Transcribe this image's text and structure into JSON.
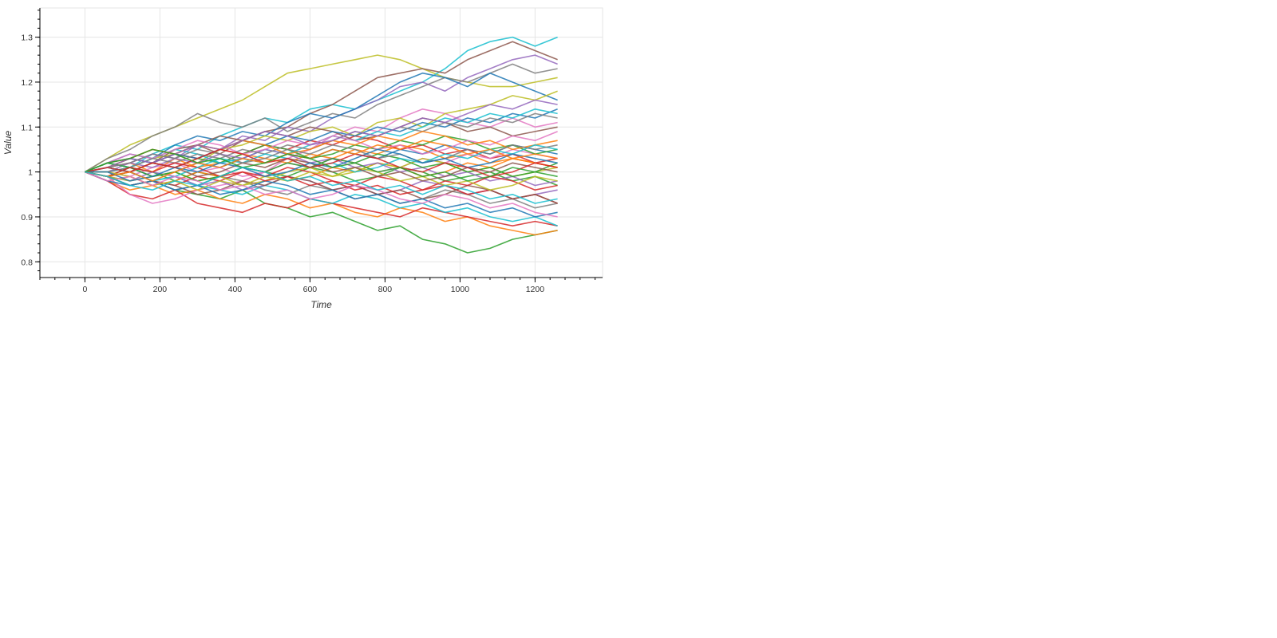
{
  "chart_data": {
    "type": "line",
    "title": "",
    "xlabel": "Time",
    "ylabel": "Value",
    "xlim": [
      -120,
      1380
    ],
    "ylim": [
      0.765,
      1.365
    ],
    "x_ticks": [
      0,
      200,
      400,
      600,
      800,
      1000,
      1200
    ],
    "x_tick_labels": [
      "0",
      "200",
      "400",
      "600",
      "800",
      "1000",
      "1200"
    ],
    "y_ticks": [
      0.8,
      0.9,
      1.0,
      1.1,
      1.2,
      1.3
    ],
    "y_tick_labels": [
      "0.8",
      "0.9",
      "1",
      "1.1",
      "1.2",
      "1.3"
    ],
    "grid": true,
    "legend": "none",
    "x_step": 60,
    "x_start": 0,
    "palette": [
      "#1f77b4",
      "#ff7f0e",
      "#2ca02c",
      "#d62728",
      "#9467bd",
      "#8c564b",
      "#e377c2",
      "#7f7f7f",
      "#bcbd22",
      "#17becf"
    ],
    "series": [
      {
        "color": "#bcbd22",
        "values": [
          1.0,
          1.03,
          1.06,
          1.08,
          1.1,
          1.12,
          1.14,
          1.16,
          1.19,
          1.22,
          1.23,
          1.24,
          1.25,
          1.26,
          1.25,
          1.23,
          1.21,
          1.2,
          1.19,
          1.19,
          1.2,
          1.21
        ]
      },
      {
        "color": "#17becf",
        "values": [
          1.0,
          1.02,
          1.01,
          1.04,
          1.06,
          1.05,
          1.08,
          1.1,
          1.12,
          1.11,
          1.14,
          1.15,
          1.14,
          1.16,
          1.18,
          1.2,
          1.23,
          1.27,
          1.29,
          1.3,
          1.28,
          1.3
        ]
      },
      {
        "color": "#8c564b",
        "values": [
          1.0,
          1.01,
          1.03,
          1.02,
          1.05,
          1.06,
          1.04,
          1.07,
          1.09,
          1.1,
          1.13,
          1.15,
          1.18,
          1.21,
          1.22,
          1.23,
          1.22,
          1.25,
          1.27,
          1.29,
          1.27,
          1.25
        ]
      },
      {
        "color": "#9467bd",
        "values": [
          1.0,
          1.0,
          1.02,
          1.04,
          1.03,
          1.06,
          1.05,
          1.08,
          1.07,
          1.1,
          1.09,
          1.12,
          1.14,
          1.16,
          1.19,
          1.2,
          1.18,
          1.21,
          1.23,
          1.25,
          1.26,
          1.24
        ]
      },
      {
        "color": "#7f7f7f",
        "values": [
          1.0,
          1.03,
          1.05,
          1.08,
          1.1,
          1.13,
          1.11,
          1.1,
          1.12,
          1.09,
          1.11,
          1.13,
          1.12,
          1.15,
          1.17,
          1.19,
          1.21,
          1.2,
          1.22,
          1.24,
          1.22,
          1.23
        ]
      },
      {
        "color": "#1f77b4",
        "values": [
          1.0,
          1.02,
          1.04,
          1.03,
          1.06,
          1.08,
          1.07,
          1.09,
          1.08,
          1.11,
          1.13,
          1.12,
          1.14,
          1.17,
          1.2,
          1.22,
          1.21,
          1.19,
          1.22,
          1.2,
          1.18,
          1.16
        ]
      },
      {
        "color": "#2ca02c",
        "values": [
          1.0,
          0.99,
          0.97,
          0.98,
          0.96,
          0.95,
          0.94,
          0.96,
          0.93,
          0.92,
          0.9,
          0.91,
          0.89,
          0.87,
          0.88,
          0.85,
          0.84,
          0.82,
          0.83,
          0.85,
          0.86,
          0.87
        ]
      },
      {
        "color": "#ff7f0e",
        "values": [
          1.0,
          0.98,
          0.96,
          0.97,
          0.95,
          0.96,
          0.94,
          0.93,
          0.95,
          0.94,
          0.92,
          0.93,
          0.91,
          0.9,
          0.92,
          0.91,
          0.89,
          0.9,
          0.88,
          0.87,
          0.86,
          0.87
        ]
      },
      {
        "color": "#d62728",
        "values": [
          1.0,
          0.98,
          0.95,
          0.94,
          0.96,
          0.93,
          0.92,
          0.91,
          0.93,
          0.92,
          0.94,
          0.93,
          0.92,
          0.91,
          0.9,
          0.92,
          0.91,
          0.9,
          0.89,
          0.88,
          0.89,
          0.88
        ]
      },
      {
        "color": "#e377c2",
        "values": [
          1.0,
          0.99,
          0.95,
          0.93,
          0.94,
          0.96,
          0.97,
          0.98,
          1.0,
          1.03,
          1.05,
          1.08,
          1.1,
          1.09,
          1.12,
          1.14,
          1.13,
          1.11,
          1.1,
          1.12,
          1.1,
          1.11
        ]
      },
      {
        "color": "#17becf",
        "values": [
          1.0,
          1.01,
          1.0,
          0.98,
          0.99,
          0.97,
          0.96,
          0.95,
          0.97,
          0.96,
          0.94,
          0.93,
          0.95,
          0.94,
          0.92,
          0.93,
          0.91,
          0.92,
          0.9,
          0.89,
          0.9,
          0.88
        ]
      },
      {
        "color": "#bcbd22",
        "values": [
          1.0,
          1.02,
          1.01,
          1.03,
          1.04,
          1.02,
          1.05,
          1.06,
          1.08,
          1.07,
          1.09,
          1.1,
          1.08,
          1.11,
          1.12,
          1.1,
          1.13,
          1.14,
          1.15,
          1.17,
          1.16,
          1.18
        ]
      },
      {
        "color": "#1f77b4",
        "values": [
          1.0,
          1.0,
          1.01,
          0.99,
          1.0,
          1.02,
          1.01,
          1.03,
          1.02,
          1.04,
          1.03,
          1.05,
          1.04,
          1.03,
          1.05,
          1.04,
          1.06,
          1.05,
          1.04,
          1.06,
          1.05,
          1.04
        ]
      },
      {
        "color": "#ff7f0e",
        "values": [
          1.0,
          1.01,
          1.02,
          1.0,
          1.03,
          1.01,
          1.02,
          1.04,
          1.03,
          1.02,
          1.04,
          1.03,
          1.05,
          1.04,
          1.06,
          1.05,
          1.03,
          1.04,
          1.02,
          1.03,
          1.02,
          1.01
        ]
      },
      {
        "color": "#2ca02c",
        "values": [
          1.0,
          0.99,
          1.01,
          1.0,
          0.98,
          1.0,
          0.99,
          1.01,
          1.0,
          0.99,
          1.01,
          1.0,
          0.98,
          0.99,
          1.01,
          1.0,
          0.98,
          0.99,
          1.0,
          0.98,
          0.99,
          0.97
        ]
      },
      {
        "color": "#d62728",
        "values": [
          1.0,
          1.01,
          1.0,
          1.02,
          1.04,
          1.03,
          1.05,
          1.04,
          1.06,
          1.05,
          1.07,
          1.06,
          1.08,
          1.07,
          1.05,
          1.06,
          1.04,
          1.05,
          1.03,
          1.04,
          1.02,
          1.03
        ]
      },
      {
        "color": "#9467bd",
        "values": [
          1.0,
          0.99,
          0.98,
          1.0,
          0.99,
          0.97,
          0.98,
          0.96,
          0.97,
          0.99,
          0.98,
          0.96,
          0.97,
          0.95,
          0.96,
          0.98,
          0.97,
          0.95,
          0.96,
          0.94,
          0.95,
          0.96
        ]
      },
      {
        "color": "#8c564b",
        "values": [
          1.0,
          1.02,
          1.03,
          1.05,
          1.04,
          1.06,
          1.08,
          1.07,
          1.09,
          1.08,
          1.1,
          1.09,
          1.07,
          1.08,
          1.1,
          1.12,
          1.11,
          1.09,
          1.1,
          1.08,
          1.09,
          1.1
        ]
      },
      {
        "color": "#e377c2",
        "values": [
          1.0,
          1.0,
          0.99,
          1.01,
          1.02,
          1.0,
          1.01,
          0.99,
          1.0,
          1.02,
          1.01,
          1.03,
          1.02,
          1.0,
          1.01,
          1.03,
          1.02,
          1.04,
          1.03,
          1.05,
          1.04,
          1.03
        ]
      },
      {
        "color": "#7f7f7f",
        "values": [
          1.0,
          0.99,
          0.97,
          0.98,
          0.96,
          0.97,
          0.99,
          0.98,
          0.96,
          0.95,
          0.97,
          0.96,
          0.94,
          0.95,
          0.93,
          0.94,
          0.96,
          0.95,
          0.93,
          0.94,
          0.92,
          0.93
        ]
      },
      {
        "color": "#1f77b4",
        "values": [
          1.0,
          1.01,
          1.03,
          1.02,
          1.04,
          1.03,
          1.05,
          1.07,
          1.06,
          1.08,
          1.07,
          1.09,
          1.08,
          1.1,
          1.09,
          1.11,
          1.1,
          1.12,
          1.11,
          1.13,
          1.12,
          1.14
        ]
      },
      {
        "color": "#ff7f0e",
        "values": [
          1.0,
          0.98,
          0.99,
          0.97,
          0.98,
          1.0,
          0.99,
          1.01,
          1.0,
          0.98,
          0.99,
          1.01,
          1.0,
          1.02,
          1.01,
          0.99,
          1.0,
          1.02,
          1.01,
          1.03,
          1.02,
          1.01
        ]
      },
      {
        "color": "#2ca02c",
        "values": [
          1.0,
          1.01,
          1.0,
          1.02,
          1.01,
          1.03,
          1.02,
          1.04,
          1.06,
          1.05,
          1.03,
          1.04,
          1.06,
          1.05,
          1.07,
          1.06,
          1.08,
          1.07,
          1.05,
          1.06,
          1.04,
          1.05
        ]
      },
      {
        "color": "#d62728",
        "values": [
          1.0,
          0.99,
          1.0,
          0.98,
          0.97,
          0.99,
          0.98,
          1.0,
          0.99,
          1.01,
          1.0,
          0.98,
          0.97,
          0.99,
          0.98,
          0.96,
          0.97,
          0.95,
          0.96,
          0.94,
          0.95,
          0.93
        ]
      },
      {
        "color": "#17becf",
        "values": [
          1.0,
          1.02,
          1.01,
          1.03,
          1.05,
          1.04,
          1.02,
          1.03,
          1.05,
          1.04,
          1.06,
          1.08,
          1.07,
          1.09,
          1.08,
          1.1,
          1.12,
          1.11,
          1.13,
          1.12,
          1.14,
          1.13
        ]
      },
      {
        "color": "#bcbd22",
        "values": [
          1.0,
          0.99,
          0.98,
          0.99,
          1.0,
          0.98,
          0.99,
          0.97,
          0.98,
          1.0,
          1.01,
          0.99,
          1.0,
          1.02,
          1.01,
          1.03,
          1.02,
          1.0,
          1.01,
          0.99,
          1.0,
          1.01
        ]
      },
      {
        "color": "#9467bd",
        "values": [
          1.0,
          1.01,
          1.02,
          1.01,
          1.03,
          1.02,
          1.04,
          1.03,
          1.05,
          1.04,
          1.02,
          1.03,
          1.01,
          1.02,
          1.0,
          1.01,
          0.99,
          1.0,
          0.98,
          0.99,
          0.97,
          0.98
        ]
      },
      {
        "color": "#8c564b",
        "values": [
          1.0,
          0.99,
          0.97,
          0.98,
          0.97,
          0.95,
          0.96,
          0.98,
          0.97,
          0.99,
          0.98,
          0.96,
          0.97,
          0.95,
          0.96,
          0.94,
          0.95,
          0.97,
          0.96,
          0.94,
          0.95,
          0.93
        ]
      },
      {
        "color": "#e377c2",
        "values": [
          1.0,
          1.02,
          1.04,
          1.03,
          1.05,
          1.07,
          1.06,
          1.04,
          1.05,
          1.07,
          1.06,
          1.08,
          1.07,
          1.05,
          1.06,
          1.04,
          1.05,
          1.07,
          1.06,
          1.08,
          1.07,
          1.09
        ]
      },
      {
        "color": "#7f7f7f",
        "values": [
          1.0,
          1.0,
          1.01,
          1.03,
          1.02,
          1.04,
          1.03,
          1.05,
          1.04,
          1.06,
          1.05,
          1.07,
          1.09,
          1.08,
          1.1,
          1.09,
          1.11,
          1.1,
          1.12,
          1.11,
          1.13,
          1.12
        ]
      },
      {
        "color": "#1f77b4",
        "values": [
          1.0,
          0.98,
          0.97,
          0.98,
          0.96,
          0.97,
          0.95,
          0.96,
          0.98,
          0.97,
          0.95,
          0.96,
          0.94,
          0.95,
          0.93,
          0.94,
          0.92,
          0.93,
          0.91,
          0.92,
          0.9,
          0.91
        ]
      },
      {
        "color": "#ff7f0e",
        "values": [
          1.0,
          1.01,
          1.03,
          1.05,
          1.04,
          1.06,
          1.05,
          1.07,
          1.06,
          1.04,
          1.05,
          1.07,
          1.06,
          1.08,
          1.07,
          1.09,
          1.08,
          1.06,
          1.07,
          1.05,
          1.06,
          1.07
        ]
      },
      {
        "color": "#2ca02c",
        "values": [
          1.0,
          1.02,
          1.01,
          0.99,
          1.0,
          0.98,
          0.99,
          1.01,
          1.0,
          1.02,
          1.01,
          1.03,
          1.02,
          1.04,
          1.03,
          1.01,
          1.02,
          1.0,
          1.01,
          0.99,
          1.0,
          1.02
        ]
      },
      {
        "color": "#d62728",
        "values": [
          1.0,
          0.99,
          1.01,
          1.0,
          1.02,
          1.01,
          0.99,
          1.0,
          0.98,
          0.99,
          0.97,
          0.98,
          0.96,
          0.97,
          0.95,
          0.96,
          0.98,
          0.97,
          0.99,
          0.98,
          0.96,
          0.97
        ]
      },
      {
        "color": "#17becf",
        "values": [
          1.0,
          1.01,
          1.0,
          0.98,
          0.99,
          1.01,
          1.03,
          1.02,
          1.04,
          1.03,
          1.01,
          1.02,
          1.0,
          1.01,
          1.03,
          1.02,
          1.04,
          1.03,
          1.05,
          1.04,
          1.06,
          1.05
        ]
      },
      {
        "color": "#bcbd22",
        "values": [
          1.0,
          1.0,
          0.99,
          0.97,
          0.98,
          0.96,
          0.98,
          0.97,
          0.99,
          0.98,
          1.0,
          0.99,
          1.01,
          1.0,
          0.98,
          0.99,
          0.97,
          0.98,
          0.96,
          0.97,
          0.99,
          0.98
        ]
      },
      {
        "color": "#9467bd",
        "values": [
          1.0,
          1.01,
          1.03,
          1.02,
          1.04,
          1.06,
          1.05,
          1.07,
          1.09,
          1.08,
          1.06,
          1.07,
          1.09,
          1.08,
          1.1,
          1.12,
          1.11,
          1.13,
          1.15,
          1.14,
          1.16,
          1.15
        ]
      },
      {
        "color": "#8c564b",
        "values": [
          1.0,
          0.99,
          1.0,
          1.02,
          1.01,
          0.99,
          1.0,
          1.02,
          1.01,
          1.03,
          1.02,
          1.0,
          1.01,
          0.99,
          1.0,
          0.98,
          0.99,
          1.01,
          1.0,
          1.02,
          1.01,
          1.0
        ]
      },
      {
        "color": "#e377c2",
        "values": [
          1.0,
          0.98,
          0.99,
          0.97,
          0.99,
          0.98,
          0.96,
          0.97,
          0.95,
          0.96,
          0.94,
          0.95,
          0.97,
          0.96,
          0.94,
          0.93,
          0.95,
          0.94,
          0.92,
          0.93,
          0.91,
          0.9
        ]
      },
      {
        "color": "#7f7f7f",
        "values": [
          1.0,
          1.01,
          1.02,
          1.04,
          1.03,
          1.05,
          1.04,
          1.02,
          1.03,
          1.05,
          1.04,
          1.06,
          1.05,
          1.03,
          1.04,
          1.02,
          1.03,
          1.05,
          1.04,
          1.06,
          1.05,
          1.06
        ]
      },
      {
        "color": "#1f77b4",
        "values": [
          1.0,
          1.0,
          0.98,
          0.99,
          1.01,
          1.0,
          1.02,
          1.01,
          0.99,
          1.0,
          1.02,
          1.01,
          1.03,
          1.05,
          1.04,
          1.02,
          1.03,
          1.01,
          1.02,
          1.04,
          1.03,
          1.02
        ]
      },
      {
        "color": "#d62728",
        "values": [
          1.0,
          1.01,
          1.0,
          1.02,
          1.01,
          1.03,
          1.05,
          1.04,
          1.02,
          1.03,
          1.01,
          1.02,
          1.04,
          1.03,
          1.01,
          1.0,
          1.02,
          1.01,
          0.99,
          1.0,
          1.02,
          1.01
        ]
      },
      {
        "color": "#ff7f0e",
        "values": [
          1.0,
          0.99,
          1.0,
          0.98,
          1.0,
          1.02,
          1.01,
          1.03,
          1.02,
          1.04,
          1.03,
          1.05,
          1.04,
          1.06,
          1.05,
          1.07,
          1.06,
          1.04,
          1.05,
          1.03,
          1.04,
          1.03
        ]
      },
      {
        "color": "#2ca02c",
        "values": [
          1.0,
          1.02,
          1.03,
          1.05,
          1.04,
          1.02,
          1.03,
          1.01,
          1.02,
          1.04,
          1.03,
          1.01,
          1.02,
          1.0,
          1.01,
          0.99,
          1.0,
          0.98,
          0.99,
          1.01,
          1.0,
          0.99
        ]
      },
      {
        "color": "#17becf",
        "values": [
          1.0,
          0.99,
          0.97,
          0.96,
          0.98,
          0.97,
          0.99,
          1.01,
          1.0,
          0.98,
          0.99,
          0.97,
          0.98,
          0.96,
          0.97,
          0.95,
          0.97,
          0.96,
          0.94,
          0.95,
          0.93,
          0.94
        ]
      }
    ]
  }
}
